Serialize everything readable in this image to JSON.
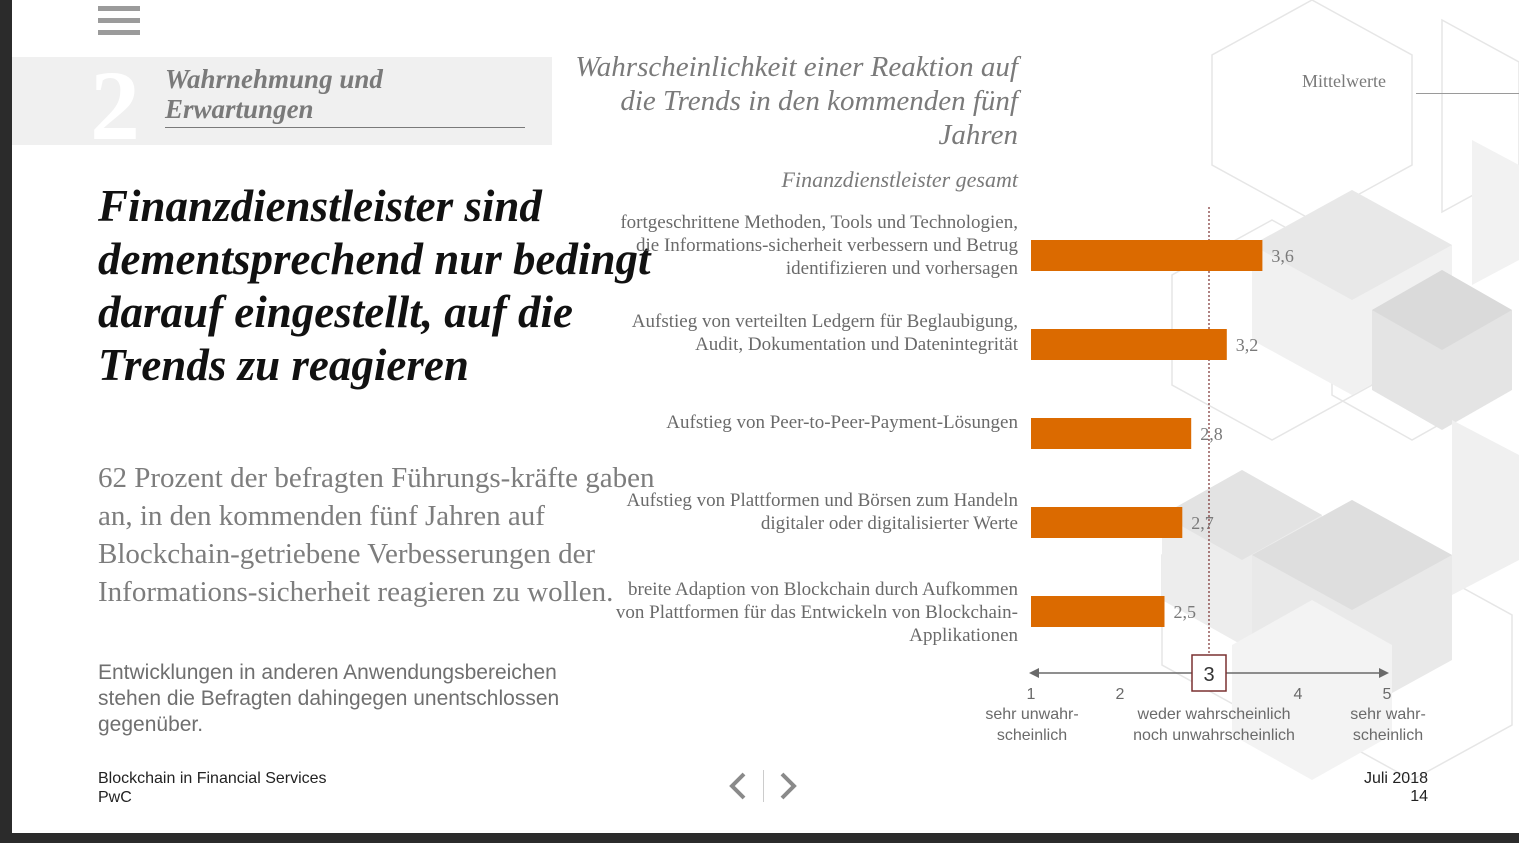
{
  "section": {
    "number": "2",
    "title": "Wahrnehmung und Erwartungen"
  },
  "headline": "Finanzdienstleister sind dementsprechend nur bedingt darauf eingestellt, auf die Trends zu reagieren",
  "lead": "62 Prozent der befragten Führungs-kräfte gaben an, in den kommenden fünf Jahren auf Blockchain-getriebene Verbesserungen der Informations-sicherheit reagieren zu wollen.",
  "subtext": "Entwicklungen in anderen Anwendungsbereichen stehen die Befragten dahingegen unentschlossen gegenüber.",
  "footer": {
    "publication": "Blockchain in Financial Services",
    "company": "PwC",
    "date": "Juli 2018",
    "page": "14"
  },
  "chart_data": {
    "type": "bar",
    "orientation": "horizontal",
    "title": "Wahrscheinlichkeit einer Reaktion auf die Trends in den kommenden fünf Jahren",
    "subtitle": "Finanzdienstleister gesamt",
    "legend_label": "Mittelwerte",
    "categories": [
      "fortgeschrittene Methoden, Tools und Technologien, die Informations-sicherheit verbessern und Betrug identifizieren und vorhersagen",
      "Aufstieg von verteilten Ledgern für Beglaubigung, Audit, Dokumentation und Datenintegrität",
      "Aufstieg von Peer-to-Peer-Payment-Lösungen",
      "Aufstieg von Plattformen und Börsen zum Handeln digitaler oder digitalisierter Werte",
      "breite Adaption von Blockchain durch Aufkommen von Plattformen für das Entwickeln von Blockchain-Applikationen"
    ],
    "values": [
      3.6,
      3.2,
      2.8,
      2.7,
      2.5
    ],
    "value_labels": [
      "3,6",
      "3,2",
      "2,8",
      "2,7",
      "2,5"
    ],
    "xlim": [
      1,
      5
    ],
    "ticks": [
      "1",
      "2",
      "3",
      "4",
      "5"
    ],
    "reference_value": 3,
    "scale_labels": {
      "low": "sehr unwahr-scheinlich",
      "mid": "weder wahrscheinlich noch unwahrscheinlich",
      "high": "sehr wahr-scheinlich"
    },
    "bar_color": "#db6a00"
  }
}
